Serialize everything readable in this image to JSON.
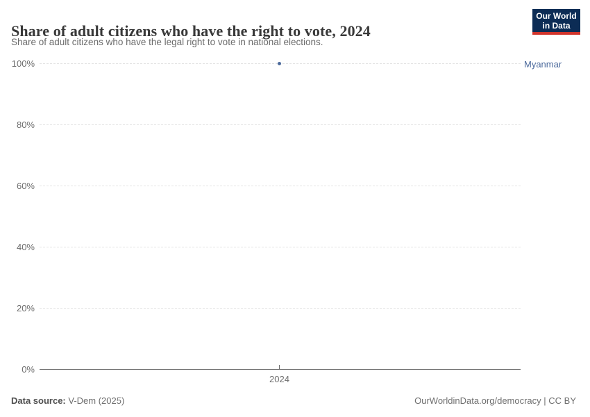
{
  "header": {
    "title": "Share of adult citizens who have the right to vote, 2024",
    "subtitle": "Share of adult citizens who have the legal right to vote in national elections.",
    "logo": {
      "line1": "Our World",
      "line2": "in Data",
      "bg_color": "#0c2c55",
      "bar_color": "#d0342c"
    }
  },
  "chart_data": {
    "type": "scatter",
    "title": "Share of adult citizens who have the right to vote, 2024",
    "subtitle": "Share of adult citizens who have the legal right to vote in national elections.",
    "x": [
      2024
    ],
    "series": [
      {
        "name": "Myanmar",
        "values": [
          100
        ],
        "color": "#4c6a9c"
      }
    ],
    "xlabel": "",
    "ylabel": "",
    "ylim": [
      0,
      100
    ],
    "yticks": [
      0,
      20,
      40,
      60,
      80,
      100
    ],
    "ytick_labels": [
      "0%",
      "20%",
      "40%",
      "60%",
      "80%",
      "100%"
    ],
    "xtick_labels": [
      "2024"
    ],
    "grid": "horizontal-dashed",
    "gridline_color": "#e4e4e4",
    "axis_color": "#6e6e6e",
    "legend_position": "entity-label-right"
  },
  "footer": {
    "source_label": "Data source:",
    "source_value": " V-Dem (2025)",
    "credit": "OurWorldinData.org/democracy | CC BY"
  }
}
